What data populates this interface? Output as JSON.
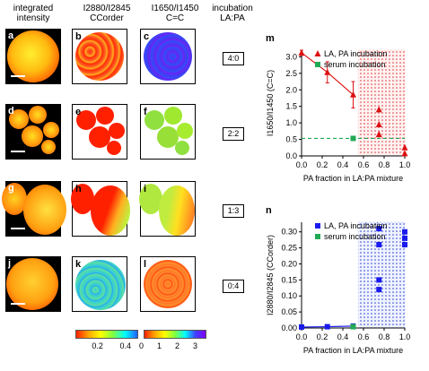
{
  "headers": {
    "col1": "integrated intensity",
    "col2_main": "I2880/I2845",
    "col2_sub": "CCorder",
    "col3_main": "I1650/I1450",
    "col3_sub": "C=C",
    "col4": "incubation LA:PA"
  },
  "panels": {
    "a": "a",
    "b": "b",
    "c": "c",
    "d": "d",
    "e": "e",
    "f": "f",
    "g": "g",
    "h": "h",
    "i": "i",
    "j": "j",
    "k": "k",
    "l": "l"
  },
  "ratios": [
    "4:0",
    "2:2",
    "1:3",
    "0:4"
  ],
  "colorbars": {
    "cc_ticks": [
      "0.2",
      "0.4"
    ],
    "cc_colors": [
      "#ff2000",
      "#ffa500",
      "#ffff00",
      "#80ff40",
      "#00ffff",
      "#2060ff"
    ],
    "cc_range": [
      0.05,
      0.5
    ],
    "cc_tick_values": [
      0.2,
      0.4
    ],
    "cec_ticks": [
      "0",
      "1",
      "2",
      "3"
    ],
    "cec_colors": [
      "#ff2000",
      "#ffa500",
      "#ffff00",
      "#80ff40",
      "#00ffff",
      "#4040ff",
      "#8000ff"
    ],
    "cec_range": [
      0,
      3.5
    ],
    "cec_tick_values": [
      0,
      1,
      2,
      3
    ]
  },
  "chart_data": [
    {
      "panel": "m",
      "type": "scatter",
      "xlabel": "PA fraction in LA:PA mixture",
      "ylabel": "I1650/I1450 (C=C)",
      "xlim": [
        0,
        1.0
      ],
      "ylim": [
        0,
        3.2
      ],
      "x_ticks": [
        "0.0",
        "0.2",
        "0.4",
        "0.6",
        "0.8",
        "1.0"
      ],
      "y_ticks": [
        "0.0",
        "0.5",
        "1.0",
        "1.5",
        "2.0",
        "2.5",
        "3.0"
      ],
      "legend_position": "top-right",
      "grid": false,
      "shaded_region": [
        0.55,
        1.0
      ],
      "series": [
        {
          "name": "LA, PA incubation",
          "marker": "triangle",
          "color": "#dd1111",
          "x": [
            0.0,
            0.25,
            0.5,
            0.75,
            0.75,
            0.75,
            1.0,
            1.0
          ],
          "y": [
            3.12,
            2.53,
            1.85,
            1.4,
            0.95,
            0.65,
            0.25,
            0.07
          ],
          "errors": [
            0.08,
            0.32,
            0.4,
            null,
            null,
            null,
            null,
            null
          ],
          "connected_indices": [
            0,
            1,
            2
          ]
        },
        {
          "name": "serum incubation",
          "marker": "square",
          "color": "#22aa55",
          "x": [
            0.5
          ],
          "y": [
            0.53
          ],
          "reference_line": 0.53
        }
      ]
    },
    {
      "panel": "n",
      "type": "scatter",
      "xlabel": "PA fraction in LA:PA mixture",
      "ylabel": "I2880/I2845 (CCorder)",
      "xlim": [
        0,
        1.0
      ],
      "ylim": [
        0,
        0.33
      ],
      "x_ticks": [
        "0.0",
        "0.2",
        "0.4",
        "0.6",
        "0.8",
        "1.0"
      ],
      "y_ticks": [
        "0.00",
        "0.05",
        "0.10",
        "0.15",
        "0.20",
        "0.25",
        "0.30"
      ],
      "legend_position": "top-right",
      "grid": false,
      "shaded_region": [
        0.55,
        1.0
      ],
      "series": [
        {
          "name": "LA, PA incubation",
          "marker": "square",
          "color": "#1a1aee",
          "x": [
            0.0,
            0.25,
            0.5,
            0.75,
            0.75,
            0.75,
            0.75,
            1.0,
            1.0,
            1.0
          ],
          "y": [
            0.003,
            0.004,
            0.006,
            0.31,
            0.26,
            0.15,
            0.12,
            0.3,
            0.28,
            0.26
          ],
          "connected_indices": [
            0,
            1,
            2
          ]
        },
        {
          "name": "serum incubation",
          "marker": "square",
          "color": "#22aa55",
          "x": [
            0.5
          ],
          "y": [
            0.004
          ]
        }
      ]
    }
  ],
  "panel_letters": {
    "m": "m",
    "n": "n"
  }
}
